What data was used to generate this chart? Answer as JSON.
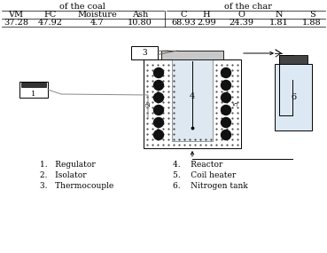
{
  "title_top": "of the coal",
  "title_top2": "of the char",
  "col_headers_coal": [
    "VM",
    "FC",
    "Moisture",
    "Ash"
  ],
  "col_headers_char": [
    "C",
    "H",
    "O",
    "N",
    "S"
  ],
  "coal_values": [
    "37.28",
    "47.92",
    "4.7",
    "10.80"
  ],
  "char_values": [
    "68.93",
    "2.99",
    "24.39",
    "1.81",
    "1.88"
  ],
  "legend_col1": [
    "1.   Regulator",
    "2.   Isolator",
    "3.   Thermocouple"
  ],
  "legend_col2": [
    "4.    Reactor",
    "5.    Coil heater",
    "6.    Nitrogen tank"
  ],
  "bg_color": "#ffffff"
}
